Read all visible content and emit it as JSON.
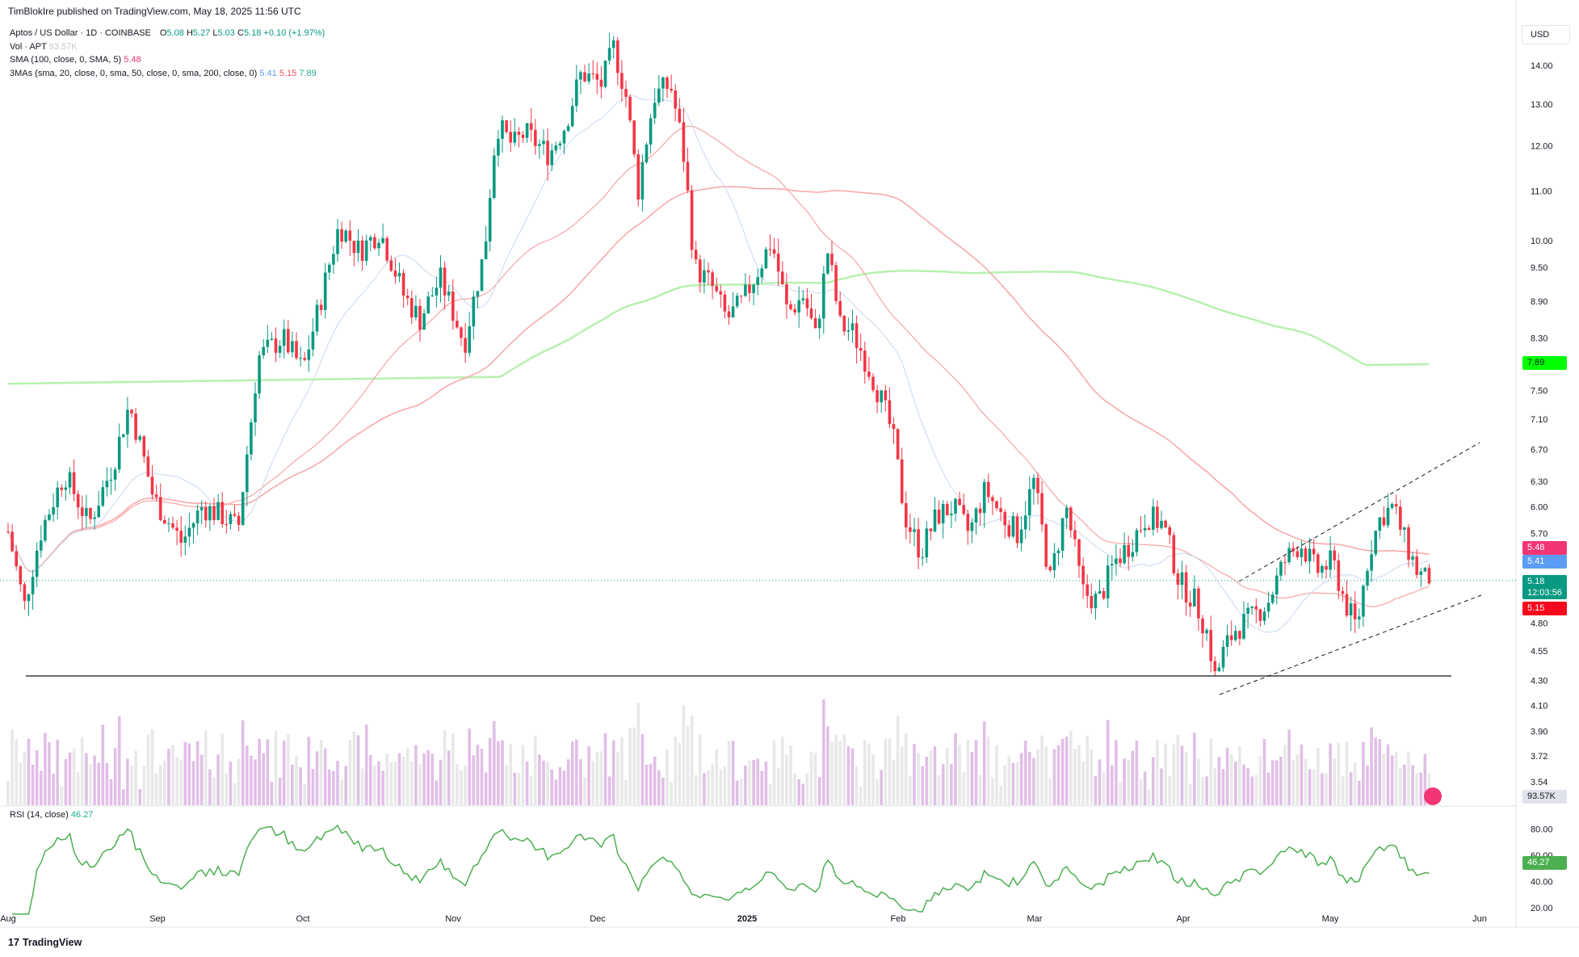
{
  "publisher": "TimBlokIre published on TradingView.com, May 18, 2025 11:56 UTC",
  "currency_button": "USD",
  "brand": {
    "logo": "17",
    "name": "TradingView"
  },
  "legend": {
    "symbol": "Aptos / US Dollar · 1D · COINBASE",
    "ohlc": {
      "o_label": "O",
      "o": "5.08",
      "h_label": "H",
      "h": "5.27",
      "l_label": "L",
      "l": "5.03",
      "c_label": "C",
      "c": "5.18",
      "change": "+0.10 (+1.97%)"
    },
    "vol_label": "Vol · APT",
    "vol_value": "93.57K",
    "sma_label": "SMA (100, close, 0, SMA, 5)",
    "sma_value": "5.48",
    "mas_label": "3MAs (sma, 20, close, 0, sma, 50, close, 0, sma, 200, close, 0)",
    "mas_values": [
      "5.41",
      "5.15",
      "7.89"
    ]
  },
  "rsi_legend": {
    "label": "RSI (14, close)",
    "value": "46.27"
  },
  "badges": {
    "sma100": "5.48",
    "ma20": "5.41",
    "price": "5.18",
    "countdown": "12:03:56",
    "ma50": "5.15",
    "ma200": "7.89",
    "volume": "93.57K",
    "rsi": "46.27"
  },
  "colors": {
    "up": "#089981",
    "down": "#f23645",
    "sma100": "#f7a5a8",
    "ma20": "#c8d8f0",
    "ma50": "#f7a5a8",
    "ma200": "#b8f0b0",
    "vol_up": "#e1bee7",
    "vol_down": "#e8e8e8",
    "rsi": "#4caf50"
  },
  "chart_data": {
    "type": "candlestick",
    "x_ticks": [
      "Aug",
      "Sep",
      "Oct",
      "Nov",
      "Dec",
      "2025",
      "Feb",
      "Mar",
      "Apr",
      "May",
      "Jun"
    ],
    "price_ticks": [
      "14.00",
      "13.00",
      "12.00",
      "11.00",
      "10.00",
      "9.50",
      "8.90",
      "8.30",
      "7.50",
      "7.10",
      "6.70",
      "6.30",
      "6.00",
      "5.70",
      "4.80",
      "4.55",
      "4.30",
      "4.10",
      "3.90",
      "3.72",
      "3.54"
    ],
    "rsi_ticks": [
      "80.00",
      "60.00",
      "40.00",
      "20.00"
    ],
    "ma200_end": 7.89,
    "sma100_end": 5.48,
    "ma20_end": 5.41,
    "ma50_end": 5.15,
    "last_close": 5.18,
    "support_level": 4.33,
    "rsi_last": 46.27,
    "volume_last": "93.57K"
  }
}
